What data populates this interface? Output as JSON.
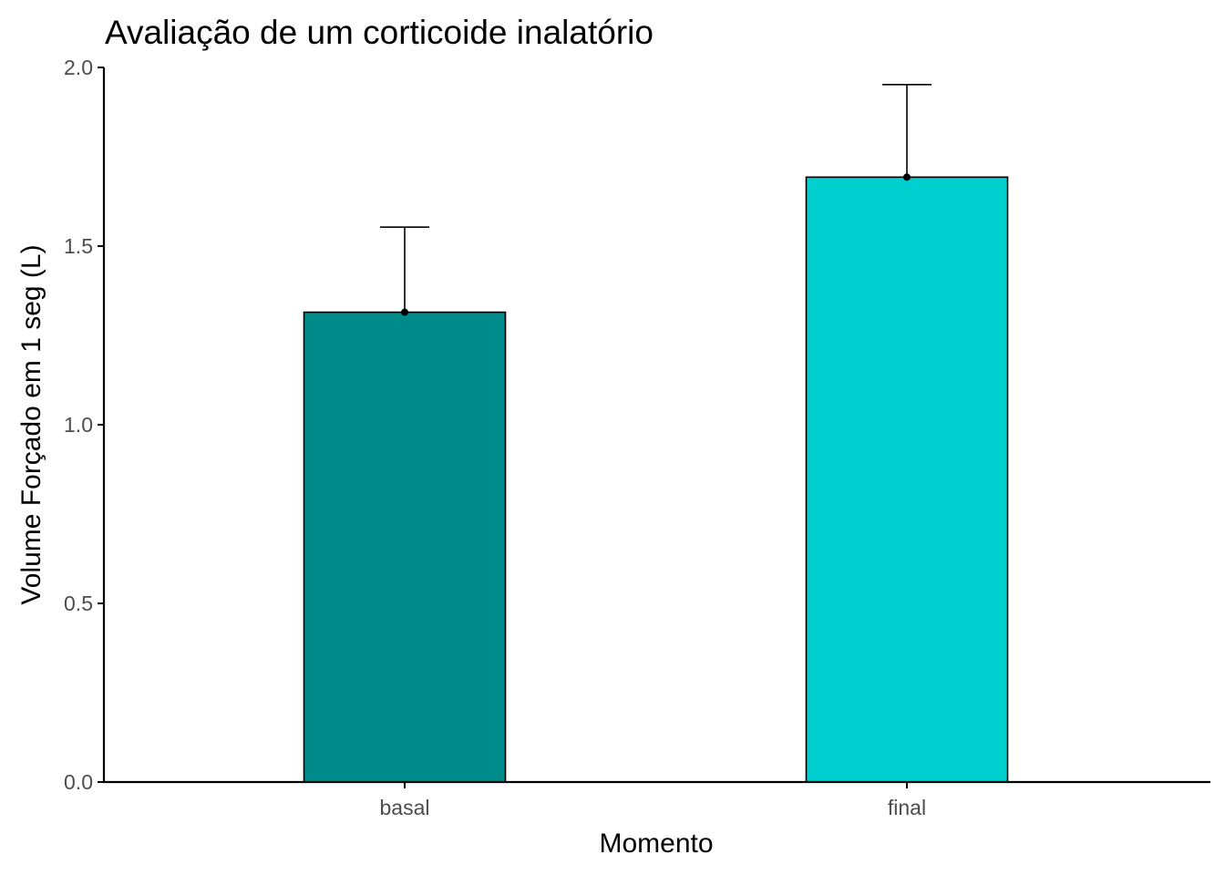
{
  "chart_data": {
    "type": "bar",
    "title": "Avaliação de um corticoide inalatório",
    "xlabel": "Momento",
    "ylabel": "Volume Forçado em 1 seg (L)",
    "categories": [
      "basal",
      "final"
    ],
    "values": [
      1.315,
      1.693
    ],
    "error_upper": [
      1.553,
      1.952
    ],
    "colors": [
      "#008b8b",
      "#00cfcf"
    ],
    "ylim": [
      0,
      2.0
    ],
    "yticks": [
      0.0,
      0.5,
      1.0,
      1.5,
      2.0
    ],
    "ytick_labels": [
      "0.0",
      "0.5",
      "1.0",
      "1.5",
      "2.0"
    ],
    "grid": false,
    "legend": "none"
  }
}
